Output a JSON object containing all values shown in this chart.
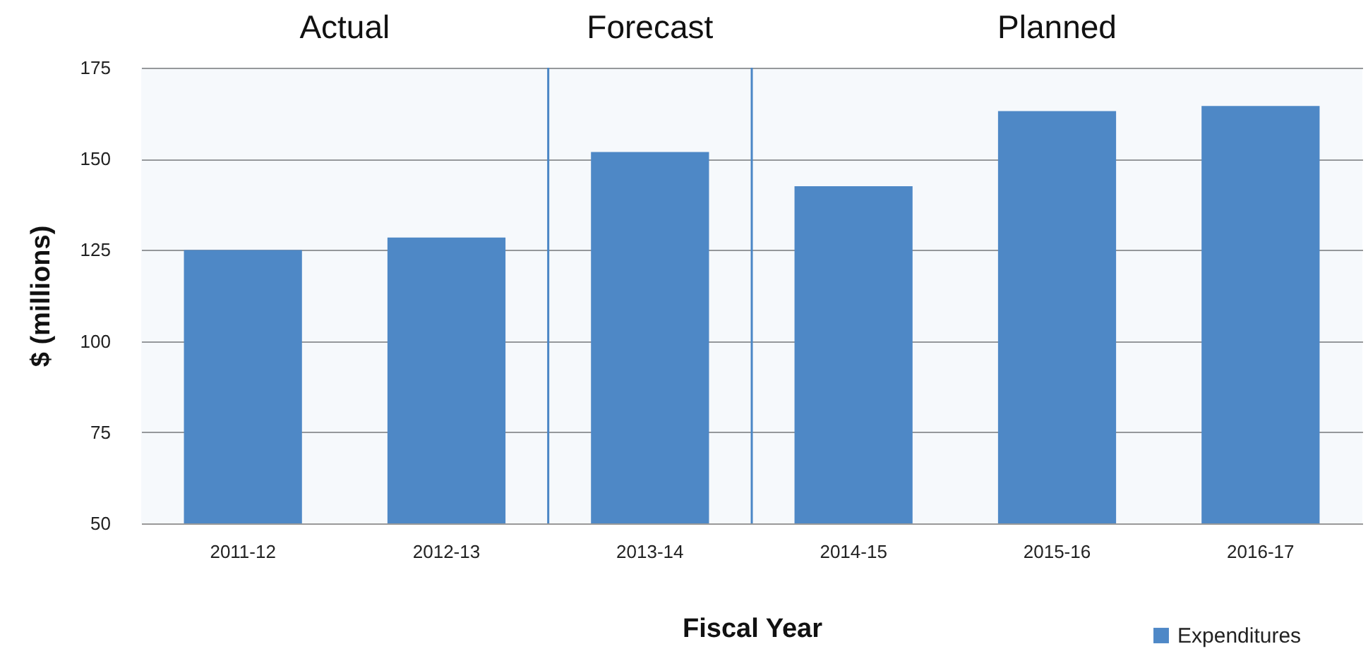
{
  "chart_data": {
    "type": "bar",
    "xlabel": "Fiscal Year",
    "ylabel": "$ (millions)",
    "categories": [
      "2011-12",
      "2012-13",
      "2013-14",
      "2014-15",
      "2015-16",
      "2016-17"
    ],
    "series": [
      {
        "name": "Expenditures",
        "color": "#4e88c7",
        "values": [
          125,
          128.4,
          151.9,
          142.5,
          163.1,
          164.5
        ]
      }
    ],
    "ylim": [
      50,
      175
    ],
    "yticks": [
      50,
      75,
      100,
      125,
      150,
      175
    ],
    "grid": "y",
    "legend": "bottom right",
    "bands": [
      {
        "axis": "x",
        "from": "2011-12",
        "to": "2012-13",
        "label": "Actual",
        "color": "#4a86c5"
      },
      {
        "axis": "x",
        "from": "2013-14",
        "to": "2013-14",
        "label": "Forecast",
        "color": "#4a86c5"
      },
      {
        "axis": "x",
        "from": "2014-15",
        "to": "2016-17",
        "label": "Planned",
        "color": "#4a86c5"
      }
    ]
  }
}
